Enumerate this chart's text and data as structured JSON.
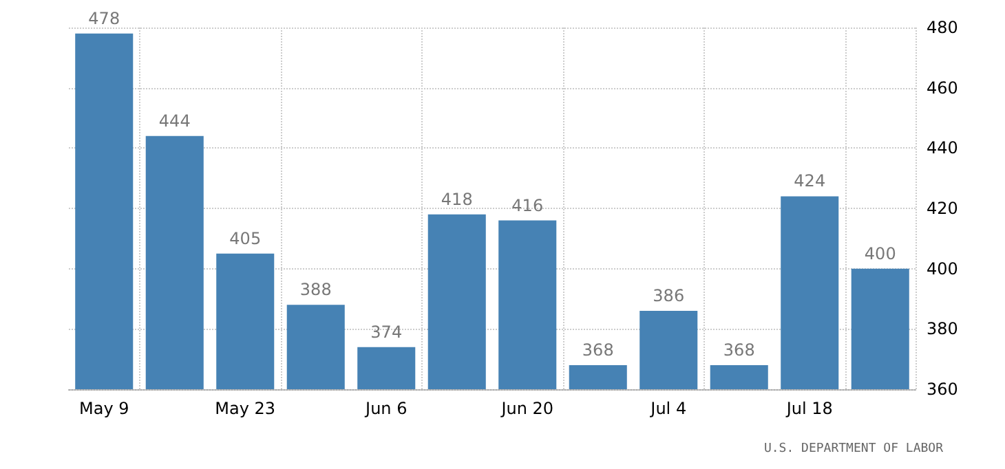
{
  "chart_data": {
    "type": "bar",
    "categories": [
      "May 9",
      null,
      "May 23",
      null,
      "Jun 6",
      null,
      "Jun 20",
      null,
      "Jul 4",
      null,
      "Jul 18",
      null
    ],
    "values": [
      478,
      444,
      405,
      388,
      374,
      418,
      416,
      368,
      386,
      368,
      424,
      400
    ],
    "color": "#4682b4",
    "data_labels": true,
    "ylim": [
      360,
      480
    ],
    "yticks": [
      360,
      380,
      400,
      420,
      440,
      460,
      480
    ],
    "grid": true,
    "annotations": [
      "U.S. DEPARTMENT OF LABOR"
    ]
  }
}
